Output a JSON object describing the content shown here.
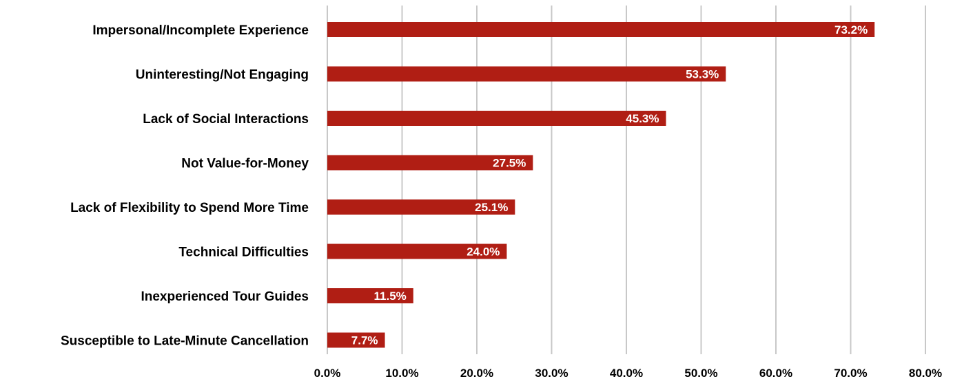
{
  "colors": {
    "bar": "#B01E14",
    "gridline": "#C8C8C8",
    "data_label_text": "#FFFFFF",
    "axis_text": "#000000"
  },
  "chart_data": {
    "type": "bar",
    "orientation": "horizontal",
    "title": "",
    "xlabel": "",
    "ylabel": "",
    "categories": [
      "Impersonal/Incomplete Experience",
      "Uninteresting/Not Engaging",
      "Lack of Social Interactions",
      "Not Value-for-Money",
      "Lack of Flexibility to Spend More Time",
      "Technical Difficulties",
      "Inexperienced Tour Guides",
      "Susceptible to Late-Minute Cancellation"
    ],
    "values": [
      73.2,
      53.3,
      45.3,
      27.5,
      25.1,
      24.0,
      11.5,
      7.7
    ],
    "data_labels": [
      "73.2%",
      "53.3%",
      "45.3%",
      "27.5%",
      "25.1%",
      "24.0%",
      "11.5%",
      "7.7%"
    ],
    "xlim": [
      0,
      80
    ],
    "x_ticks": [
      0,
      10,
      20,
      30,
      40,
      50,
      60,
      70,
      80
    ],
    "x_tick_labels": [
      "0.0%",
      "10.0%",
      "20.0%",
      "30.0%",
      "40.0%",
      "50.0%",
      "60.0%",
      "70.0%",
      "80.0%"
    ],
    "grid": "vertical",
    "legend": "none"
  }
}
